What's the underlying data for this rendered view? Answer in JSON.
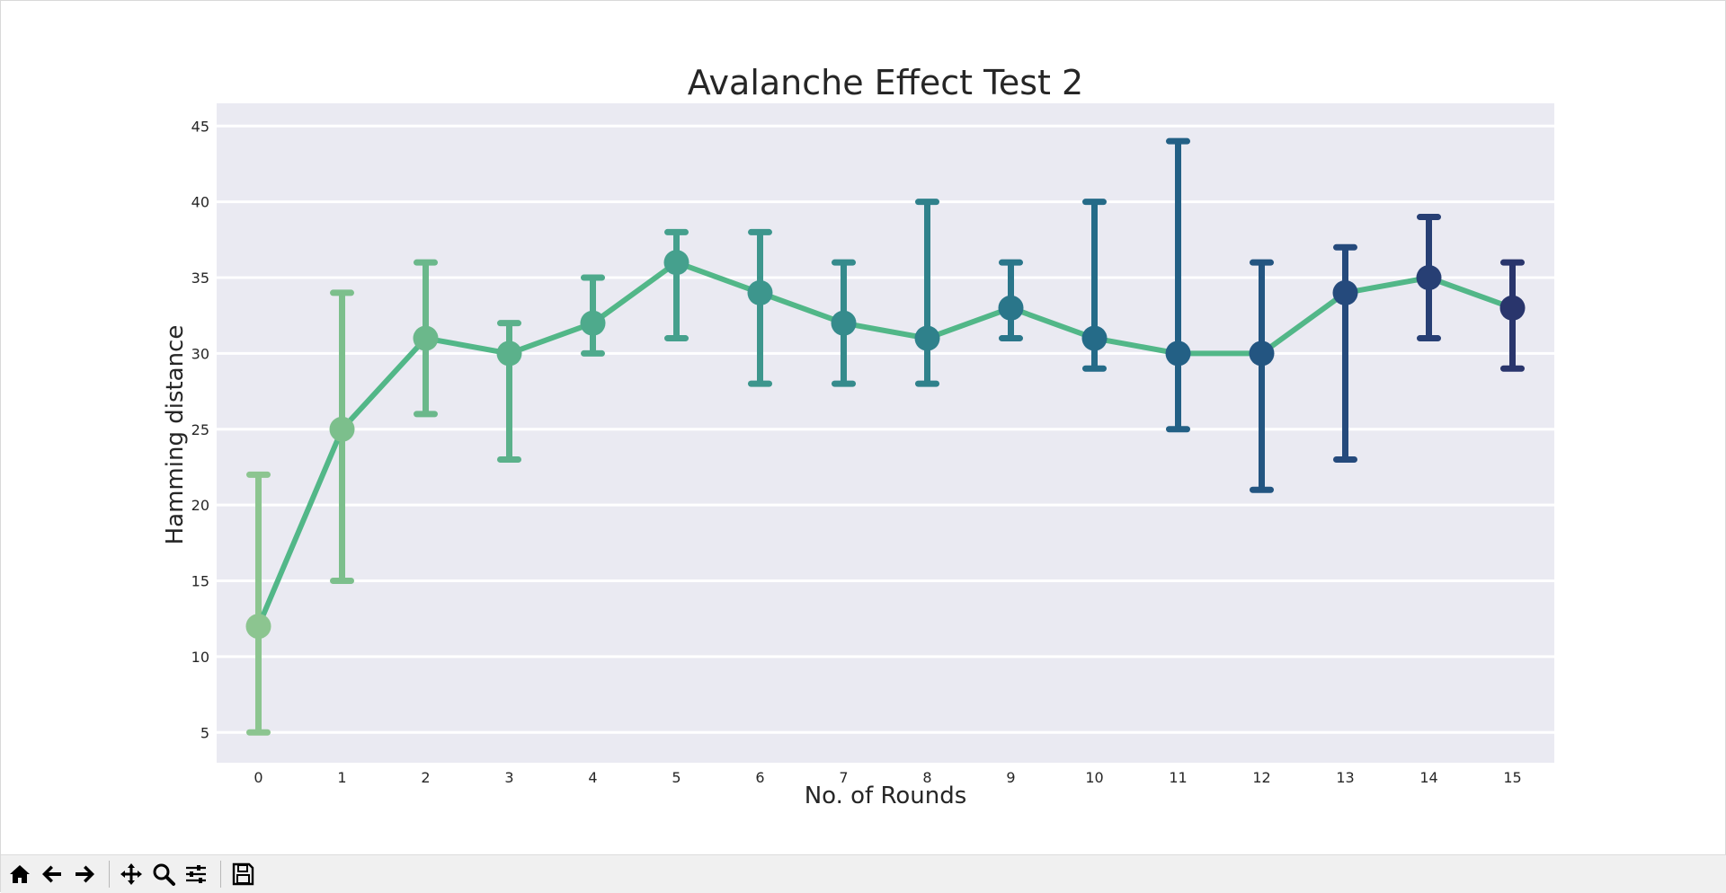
{
  "window": {
    "toolbar": {
      "buttons": [
        {
          "name": "home-button",
          "icon": "home-icon"
        },
        {
          "name": "back-button",
          "icon": "arrow-left-icon"
        },
        {
          "name": "forward-button",
          "icon": "arrow-right-icon"
        },
        {
          "name": "pan-button",
          "icon": "move-icon"
        },
        {
          "name": "zoom-button",
          "icon": "magnifier-icon"
        },
        {
          "name": "configure-subplots-button",
          "icon": "sliders-icon"
        },
        {
          "name": "save-button",
          "icon": "floppy-disk-icon"
        }
      ]
    }
  },
  "chart_data": {
    "type": "line",
    "title": "Avalanche Effect Test 2",
    "xlabel": "No. of Rounds",
    "ylabel": "Hamming distance",
    "categories": [
      "0",
      "1",
      "2",
      "3",
      "4",
      "5",
      "6",
      "7",
      "8",
      "9",
      "10",
      "11",
      "12",
      "13",
      "14",
      "15"
    ],
    "y_ticks": [
      5,
      10,
      15,
      20,
      25,
      30,
      35,
      40,
      45
    ],
    "ylim": [
      3,
      46.5
    ],
    "grid": true,
    "background": "#eaeaf2",
    "line_color": "#52b788",
    "series": [
      {
        "values": [
          12,
          25,
          31,
          30,
          32,
          36,
          34,
          32,
          31,
          33,
          31,
          30,
          30,
          34,
          35,
          33
        ],
        "error_low": [
          5,
          15,
          26,
          23,
          30,
          31,
          28,
          28,
          28,
          31,
          29,
          25,
          21,
          23,
          31,
          29
        ],
        "error_high": [
          22,
          34,
          36,
          32,
          35,
          38,
          38,
          36,
          40,
          36,
          40,
          44,
          36,
          37,
          39,
          36
        ],
        "colors": [
          "#8cc590",
          "#7cbf8c",
          "#6bb88b",
          "#5bb18b",
          "#4eaa8c",
          "#45a08d",
          "#3d968d",
          "#358b8c",
          "#2f818b",
          "#2a768a",
          "#256b88",
          "#236085",
          "#235581",
          "#254a7c",
          "#273f74",
          "#29356c"
        ]
      }
    ]
  }
}
